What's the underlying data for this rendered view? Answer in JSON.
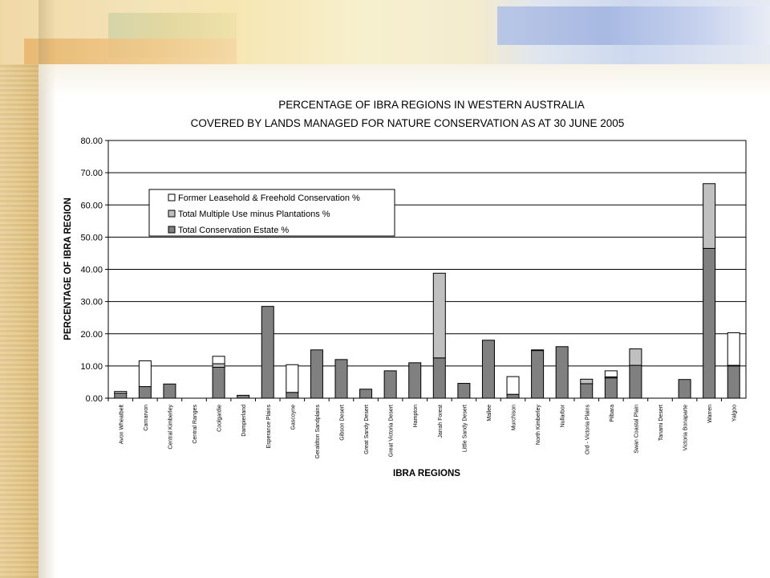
{
  "chart_data": {
    "type": "bar",
    "stacked": true,
    "title_line1": "PERCENTAGE OF IBRA REGIONS IN WESTERN AUSTRALIA",
    "title_line2": "COVERED BY LANDS MANAGED FOR NATURE CONSERVATION AS AT 30 JUNE 2005",
    "xlabel": "IBRA REGIONS",
    "ylabel": "PERCENTAGE OF IBRA REGION",
    "ylim": [
      0,
      80
    ],
    "yticks": [
      "0.00",
      "10.00",
      "20.00",
      "30.00",
      "40.00",
      "50.00",
      "60.00",
      "70.00",
      "80.00"
    ],
    "grid": true,
    "legend_position": "upper-left",
    "categories": [
      "Avon Wheatbelt",
      "Carnarvon",
      "Central Kimberley",
      "Central Ranges",
      "Coolgardie",
      "Dampierland",
      "Esperance Plains",
      "Gascoyne",
      "Geraldton Sandplains",
      "Gibson Desert",
      "Great Sandy Desert",
      "Great Victoria Desert",
      "Hampton",
      "Jarrah Forest",
      "Little Sandy Desert",
      "Mallee",
      "Murchison",
      "North Kimberley",
      "Nullarbor",
      "Ord - Victoria Plains",
      "Pilbara",
      "Swan Coastal Plain",
      "Tanami Desert",
      "Victoria Bonaparte",
      "Warren",
      "Yalgoo"
    ],
    "series": [
      {
        "name": "Total Conservation Estate %",
        "color": "#808080",
        "values": [
          1.6,
          3.6,
          4.4,
          0,
          9.6,
          0.9,
          28.5,
          1.8,
          15.0,
          12.0,
          2.8,
          8.5,
          11.0,
          12.5,
          4.6,
          18.0,
          1.2,
          14.8,
          16.0,
          4.5,
          6.3,
          10.2,
          0,
          5.8,
          46.5,
          10.0
        ]
      },
      {
        "name": "Total Multiple Use minus Plantations %",
        "color": "#c0c0c0",
        "values": [
          0,
          0,
          0,
          0,
          1.1,
          0,
          0,
          0,
          0,
          0,
          0,
          0,
          0,
          26.3,
          0,
          0,
          0,
          0.2,
          0,
          1.4,
          0.3,
          5.1,
          0,
          0,
          20.1,
          0.2
        ]
      },
      {
        "name": "Former Leasehold & Freehold Conservation %",
        "color": "#ffffff",
        "values": [
          0.5,
          8.0,
          0,
          0,
          2.3,
          0,
          0,
          8.6,
          0,
          0,
          0,
          0,
          0,
          0,
          0,
          0,
          5.5,
          0,
          0,
          0,
          1.9,
          0,
          0,
          0,
          0,
          10.1
        ]
      }
    ],
    "legend_order": [
      2,
      1,
      0
    ]
  }
}
